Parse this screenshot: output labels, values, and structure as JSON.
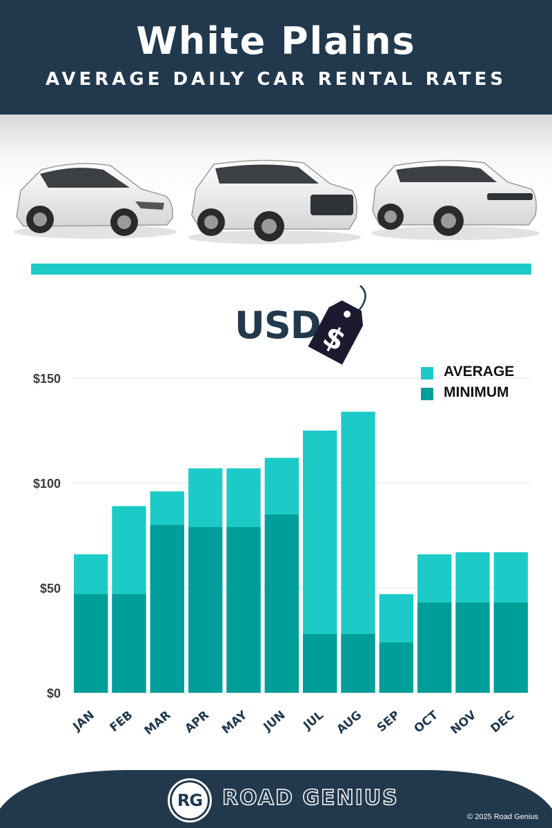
{
  "header": {
    "title": "White Plains",
    "subtitle": "AVERAGE DAILY CAR RENTAL RATES"
  },
  "currency": {
    "label": "USD",
    "tag_symbol": "$",
    "icon": "price-tag-icon"
  },
  "colors": {
    "header_bg": "#22394d",
    "accent": "#1ccbc8",
    "average": "#1ccbc8",
    "minimum": "#009e98",
    "text_dark": "#22394d"
  },
  "chart_data": {
    "type": "bar",
    "stacked_overlay": true,
    "categories": [
      "JAN",
      "FEB",
      "MAR",
      "APR",
      "MAY",
      "JUN",
      "JUL",
      "AUG",
      "SEP",
      "OCT",
      "NOV",
      "DEC"
    ],
    "series": [
      {
        "name": "AVERAGE",
        "values": [
          66,
          89,
          96,
          107,
          107,
          112,
          125,
          134,
          47,
          66,
          67,
          67
        ]
      },
      {
        "name": "MINIMUM",
        "values": [
          47,
          47,
          80,
          79,
          79,
          85,
          28,
          28,
          24,
          43,
          43,
          43
        ]
      }
    ],
    "y_ticks": [
      "$0",
      "$50",
      "$100",
      "$150"
    ],
    "y_tick_values": [
      0,
      50,
      100,
      150
    ],
    "ylim": [
      0,
      150
    ],
    "grid": true,
    "legend": {
      "placement": "top-right",
      "entries": [
        "AVERAGE",
        "MINIMUM"
      ]
    }
  },
  "footer": {
    "logo_text": "RG",
    "brand": "ROAD GENIUS",
    "copyright": "© 2025 Road Genius"
  }
}
